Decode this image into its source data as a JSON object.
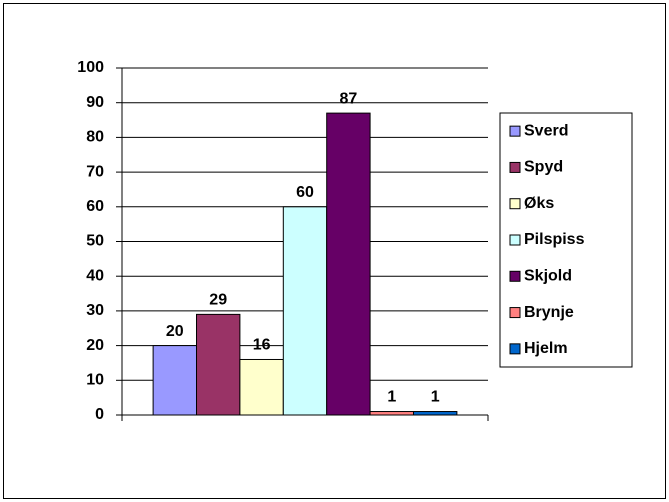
{
  "chart_data": {
    "type": "bar",
    "categories": [
      null
    ],
    "series": [
      {
        "name": "Sverd",
        "color": "#9999ff",
        "values": [
          20
        ]
      },
      {
        "name": "Spyd",
        "color": "#993366",
        "values": [
          29
        ]
      },
      {
        "name": "Øks",
        "color": "#ffffcc",
        "values": [
          16
        ]
      },
      {
        "name": "Pilspiss",
        "color": "#ccffff",
        "values": [
          60
        ]
      },
      {
        "name": "Skjold",
        "color": "#660066",
        "values": [
          87
        ]
      },
      {
        "name": "Brynje",
        "color": "#ff8080",
        "values": [
          1
        ]
      },
      {
        "name": "Hjelm",
        "color": "#0066cc",
        "values": [
          1
        ]
      }
    ],
    "ylim": [
      0,
      100
    ],
    "yticks": [
      0,
      10,
      20,
      30,
      40,
      50,
      60,
      70,
      80,
      90,
      100
    ],
    "grid": true,
    "legend": "right"
  }
}
